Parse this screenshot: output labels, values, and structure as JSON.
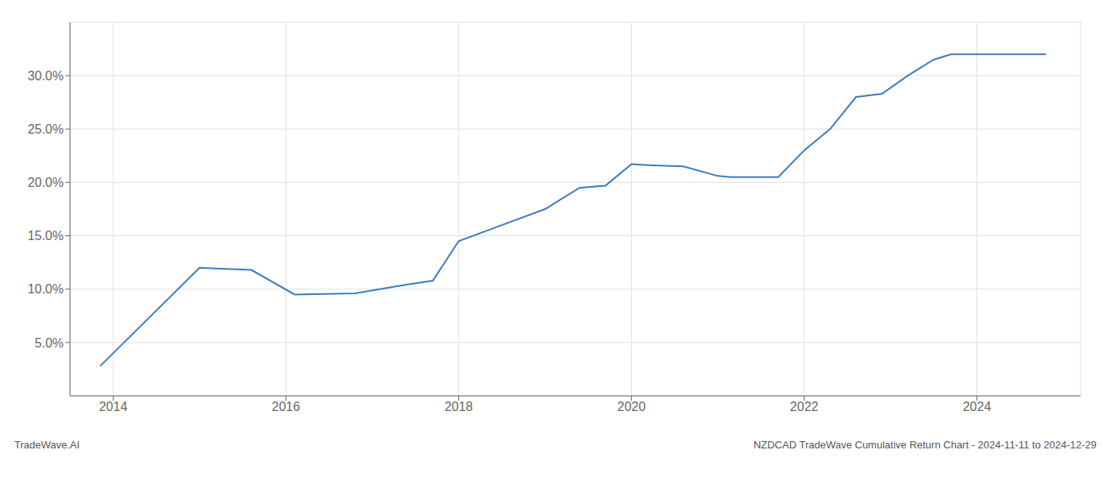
{
  "chart_data": {
    "type": "line",
    "title": "NZDCAD TradeWave Cumulative Return Chart - 2024-11-11 to 2024-12-29",
    "annotations": [
      "TradeWave.AI"
    ],
    "x": [
      2013.85,
      2015.0,
      2015.6,
      2016.1,
      2016.8,
      2017.3,
      2017.7,
      2018.0,
      2018.5,
      2019.0,
      2019.4,
      2019.7,
      2020.0,
      2020.25,
      2020.6,
      2021.0,
      2021.15,
      2021.7,
      2022.0,
      2022.3,
      2022.6,
      2022.9,
      2023.2,
      2023.5,
      2023.7,
      2024.0,
      2024.8
    ],
    "values": [
      2.8,
      12.0,
      11.8,
      9.5,
      9.6,
      10.3,
      10.8,
      14.5,
      16.0,
      17.5,
      19.5,
      19.7,
      21.7,
      21.6,
      21.5,
      20.6,
      20.5,
      20.5,
      23.0,
      25.0,
      28.0,
      28.3,
      30.0,
      31.5,
      32.0,
      32.0,
      32.0
    ],
    "color": "#3a7abf",
    "xlim": [
      2013.5,
      2025.2
    ],
    "ylim": [
      0,
      35
    ],
    "xticks": [
      2014,
      2016,
      2018,
      2020,
      2022,
      2024
    ],
    "yticks": [
      {
        "value": 5.0,
        "label": "5.0%"
      },
      {
        "value": 10.0,
        "label": "10.0%"
      },
      {
        "value": 15.0,
        "label": "15.0%"
      },
      {
        "value": 20.0,
        "label": "20.0%"
      },
      {
        "value": 25.0,
        "label": "25.0%"
      },
      {
        "value": 30.0,
        "label": "30.0%"
      }
    ],
    "grid": true
  }
}
